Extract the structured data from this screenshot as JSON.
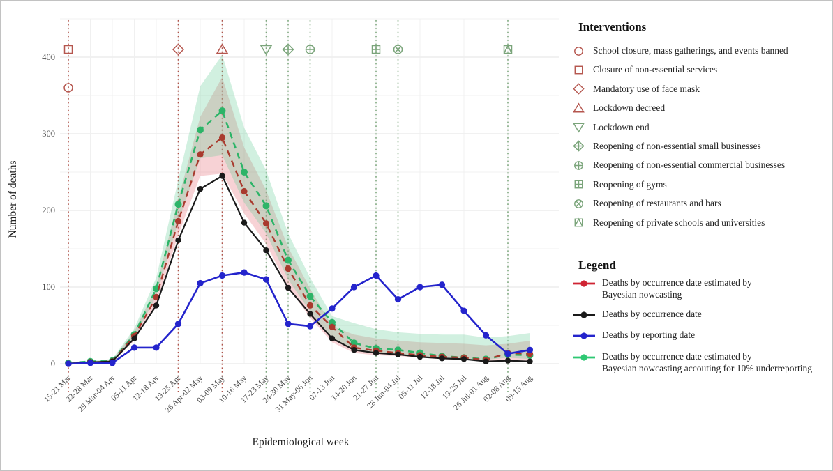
{
  "colors": {
    "red_line": "#a93a2e",
    "green_line": "#2db468",
    "blue_line": "#2424cc",
    "black_line": "#1a1a1a",
    "legend_red": "#cf2433",
    "legend_green": "#2ec873",
    "marker_red": "#b5564e",
    "marker_green": "#7aa47a",
    "vline_red": "#b0544a",
    "vline_green": "#7fa87f",
    "band_red": "rgba(229,115,125,0.32)",
    "band_green": "rgba(102,205,153,0.30)",
    "grid_major": "#e3e3e3",
    "grid_minor": "#f0f0f0",
    "tick_text": "#4f4f4f",
    "axis_text": "#1f1f1f"
  },
  "interventions_panel": {
    "title": "Interventions",
    "items": [
      {
        "shape": "circle",
        "color_key": "red",
        "label": "School closure, mass gatherings, and events banned"
      },
      {
        "shape": "square",
        "color_key": "red",
        "label": "Closure of non-essential services"
      },
      {
        "shape": "diamond",
        "color_key": "red",
        "label": "Mandatory use of face mask"
      },
      {
        "shape": "triangle-up",
        "color_key": "red",
        "label": "Lockdown decreed"
      },
      {
        "shape": "triangle-down",
        "color_key": "green",
        "label": "Lockdown end"
      },
      {
        "shape": "diamond-plus",
        "color_key": "green",
        "label": "Reopening of non-essential small businesses"
      },
      {
        "shape": "circle-plus",
        "color_key": "green",
        "label": "Reopening of non-essential commercial businesses"
      },
      {
        "shape": "square-plus",
        "color_key": "green",
        "label": "Reopening of gyms"
      },
      {
        "shape": "circle-x",
        "color_key": "green",
        "label": "Reopening of restaurants and bars"
      },
      {
        "shape": "square-triangle",
        "color_key": "green",
        "label": "Reopening of private schools and universities"
      }
    ]
  },
  "legend_panel": {
    "title": "Legend",
    "items": [
      {
        "color": "#cf2433",
        "label_lines": [
          "Deaths by occurrence date estimated by",
          "Bayesian nowcasting"
        ]
      },
      {
        "color": "#1a1a1a",
        "label_lines": [
          "Deaths by occurrence date"
        ]
      },
      {
        "color": "#2424cc",
        "label_lines": [
          "Deaths by reporting date"
        ]
      },
      {
        "color": "#2ec873",
        "label_lines": [
          "Deaths by occurrence date estimated by",
          "Bayesian nowcasting accouting for 10% underreporting"
        ]
      }
    ]
  },
  "chart_data": {
    "type": "line",
    "title": "",
    "xlabel": "Epidemiological week",
    "ylabel": "Number of deaths",
    "ylim": [
      0,
      450
    ],
    "yticks": [
      0,
      100,
      200,
      300,
      400
    ],
    "yticks_minor": [
      50,
      150,
      250,
      350,
      450
    ],
    "grid": true,
    "categories": [
      "15-21 Mar",
      "22-28 Mar",
      "29 Mar-04 Apr",
      "05-11 Apr",
      "12-18 Apr",
      "19-25 Apr",
      "26 Apr-02 May",
      "03-09 May",
      "10-16 May",
      "17-23 May",
      "24-30 May",
      "31 May-06 Jun",
      "07-13 Jun",
      "14-20 Jun",
      "21-27 Jun",
      "28 Jun-04 Jul",
      "05-11 Jul",
      "12-18 Jul",
      "19-25 Jul",
      "26 Jul-01 Aug",
      "02-08 Aug",
      "09-15 Aug"
    ],
    "series": [
      {
        "name": "Deaths by occurrence date estimated by Bayesian nowcasting",
        "color_key": "red_line",
        "style": "dashed",
        "values": [
          0,
          2,
          3,
          36,
          87,
          186,
          273,
          295,
          225,
          183,
          124,
          76,
          48,
          21,
          17,
          14,
          11,
          9,
          8,
          5,
          14,
          13
        ]
      },
      {
        "name": "Deaths by occurrence date",
        "color_key": "black_line",
        "style": "solid",
        "values": [
          0,
          2,
          3,
          33,
          76,
          161,
          228,
          245,
          184,
          148,
          99,
          65,
          33,
          18,
          14,
          12,
          9,
          7,
          6,
          3,
          4,
          3
        ]
      },
      {
        "name": "Deaths by reporting date",
        "color_key": "blue_line",
        "style": "solid",
        "values": [
          0,
          1,
          1,
          21,
          21,
          52,
          105,
          115,
          119,
          110,
          52,
          49,
          72,
          100,
          115,
          84,
          100,
          103,
          69,
          37,
          13,
          18
        ]
      },
      {
        "name": "Deaths by occurrence date estimated by Bayesian nowcasting accouting for 10% underreporting",
        "color_key": "green_line",
        "style": "dashed",
        "values": [
          1,
          3,
          4,
          38,
          98,
          208,
          305,
          330,
          250,
          206,
          135,
          88,
          54,
          27,
          20,
          18,
          14,
          10,
          8,
          6,
          12,
          11
        ]
      }
    ],
    "bands": [
      {
        "name": "nowcast-credible-interval",
        "color_key": "band_red",
        "upper": [
          1,
          3,
          5,
          42,
          100,
          215,
          322,
          374,
          282,
          226,
          152,
          98,
          49,
          38,
          33,
          30,
          28,
          27,
          26,
          24,
          26,
          30
        ],
        "lower": [
          0,
          1,
          2,
          30,
          78,
          168,
          245,
          248,
          196,
          156,
          100,
          60,
          28,
          14,
          11,
          10,
          8,
          6,
          5,
          3,
          5,
          4
        ]
      },
      {
        "name": "nowcast-underreporting-credible-interval",
        "color_key": "band_green",
        "upper": [
          2,
          4,
          6,
          46,
          112,
          240,
          362,
          403,
          308,
          252,
          170,
          112,
          62,
          53,
          45,
          41,
          39,
          38,
          38,
          34,
          36,
          40
        ],
        "lower": [
          0,
          2,
          3,
          34,
          88,
          185,
          268,
          272,
          210,
          170,
          110,
          68,
          32,
          17,
          13,
          12,
          10,
          8,
          6,
          5,
          8,
          6
        ]
      }
    ],
    "intervention_lines": [
      {
        "week_index": 0,
        "color_key": "red"
      },
      {
        "week_index": 5,
        "color_key": "red"
      },
      {
        "week_index": 7,
        "color_key": "red"
      },
      {
        "week_index": 9,
        "color_key": "green"
      },
      {
        "week_index": 10,
        "color_key": "green"
      },
      {
        "week_index": 11,
        "color_key": "green"
      },
      {
        "week_index": 14,
        "color_key": "green"
      },
      {
        "week_index": 15,
        "color_key": "green"
      },
      {
        "week_index": 20,
        "color_key": "green"
      }
    ],
    "intervention_markers": [
      {
        "week_index": 0,
        "value": 410,
        "shape": "square",
        "color_key": "red"
      },
      {
        "week_index": 0,
        "value": 360,
        "shape": "circle",
        "color_key": "red"
      },
      {
        "week_index": 5,
        "value": 410,
        "shape": "diamond",
        "color_key": "red"
      },
      {
        "week_index": 7,
        "value": 410,
        "shape": "triangle-up",
        "color_key": "red"
      },
      {
        "week_index": 9,
        "value": 410,
        "shape": "triangle-down",
        "color_key": "green"
      },
      {
        "week_index": 10,
        "value": 410,
        "shape": "diamond-plus",
        "color_key": "green"
      },
      {
        "week_index": 11,
        "value": 410,
        "shape": "circle-plus",
        "color_key": "green"
      },
      {
        "week_index": 14,
        "value": 410,
        "shape": "square-plus",
        "color_key": "green"
      },
      {
        "week_index": 15,
        "value": 410,
        "shape": "circle-x",
        "color_key": "green"
      },
      {
        "week_index": 20,
        "value": 410,
        "shape": "square-triangle",
        "color_key": "green"
      }
    ]
  }
}
